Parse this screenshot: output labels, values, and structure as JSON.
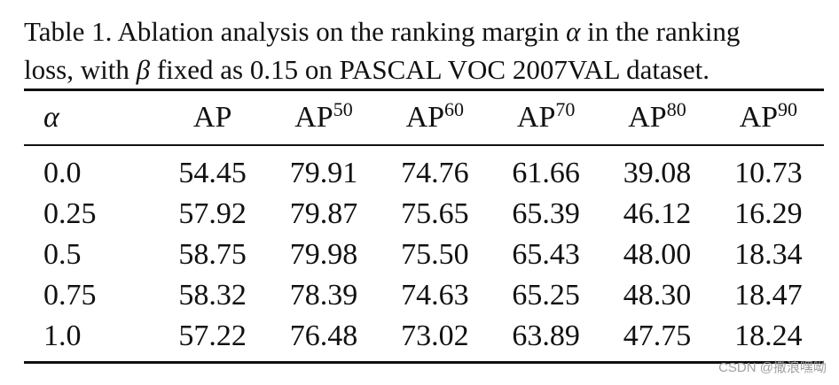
{
  "caption": {
    "line1_prefix": "Table 1. Ablation analysis on the ranking margin ",
    "line1_symbol": "α",
    "line1_suffix": " in the ranking",
    "line2_prefix": "loss, with ",
    "line2_symbol": "β",
    "line2_suffix": " fixed as 0.15 on PASCAL VOC 2007VAL dataset."
  },
  "table": {
    "headers": [
      {
        "label": "α",
        "sup": ""
      },
      {
        "label": "AP",
        "sup": ""
      },
      {
        "label": "AP",
        "sup": "50"
      },
      {
        "label": "AP",
        "sup": "60"
      },
      {
        "label": "AP",
        "sup": "70"
      },
      {
        "label": "AP",
        "sup": "80"
      },
      {
        "label": "AP",
        "sup": "90"
      }
    ],
    "rows": [
      [
        "0.0",
        "54.45",
        "79.91",
        "74.76",
        "61.66",
        "39.08",
        "10.73"
      ],
      [
        "0.25",
        "57.92",
        "79.87",
        "75.65",
        "65.39",
        "46.12",
        "16.29"
      ],
      [
        "0.5",
        "58.75",
        "79.98",
        "75.50",
        "65.43",
        "48.00",
        "18.34"
      ],
      [
        "0.75",
        "58.32",
        "78.39",
        "74.63",
        "65.25",
        "48.30",
        "18.47"
      ],
      [
        "1.0",
        "57.22",
        "76.48",
        "73.02",
        "63.89",
        "47.75",
        "18.24"
      ]
    ]
  },
  "watermark": "CSDN @撒浪嘿呦"
}
